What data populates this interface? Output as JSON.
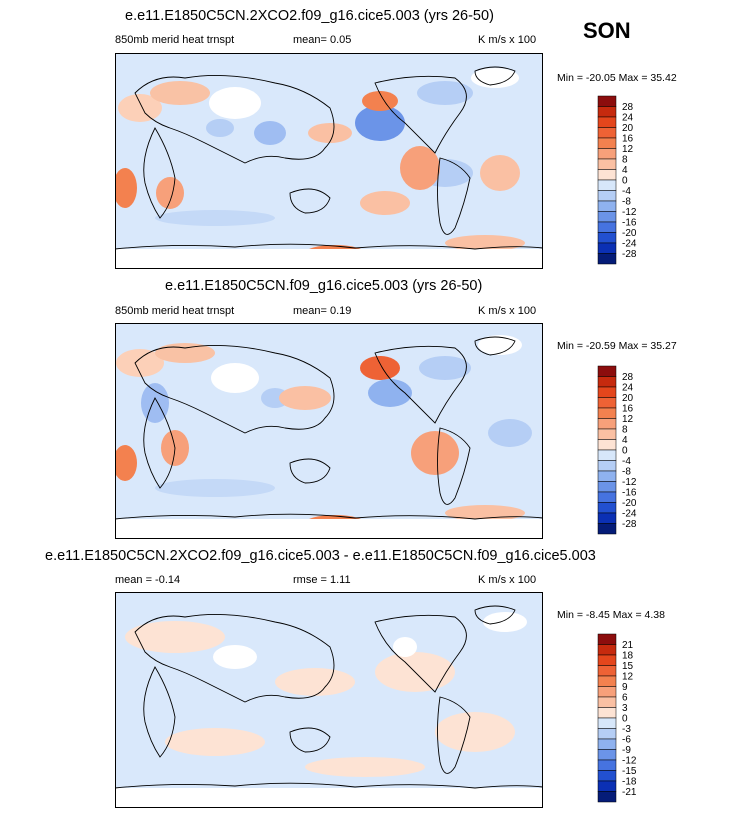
{
  "season": "SON",
  "chart_data": [
    {
      "type": "heatmap",
      "title": "e.e11.E1850C5CN.2XCO2.f09_g16.cice5.003 (yrs 26-50)",
      "left_label": "850mb merid heat trnspt",
      "center_label": "mean=   0.05",
      "units": "K m/s x 100",
      "minmax": "Min = -20.05 Max =  35.42",
      "colorbar_levels": [
        "28",
        "24",
        "20",
        "16",
        "12",
        "8",
        "4",
        "0",
        "-4",
        "-8",
        "-12",
        "-16",
        "-20",
        "-24",
        "-28"
      ],
      "colorbar_colors": [
        "#8c0d0d",
        "#c62a0e",
        "#e4461c",
        "#ee6235",
        "#f3814f",
        "#f7a07a",
        "#fac0a3",
        "#fde3d4",
        "#d7e7fa",
        "#b5cef5",
        "#8fb2ef",
        "#6b94e8",
        "#4673e0",
        "#2250d0",
        "#0b30b4",
        "#051c78"
      ]
    },
    {
      "type": "heatmap",
      "title": "e.e11.E1850C5CN.f09_g16.cice5.003 (yrs 26-50)",
      "left_label": "850mb merid heat trnspt",
      "center_label": "mean=   0.19",
      "units": "K m/s x 100",
      "minmax": "Min = -20.59 Max =  35.27",
      "colorbar_levels": [
        "28",
        "24",
        "20",
        "16",
        "12",
        "8",
        "4",
        "0",
        "-4",
        "-8",
        "-12",
        "-16",
        "-20",
        "-24",
        "-28"
      ],
      "colorbar_colors": [
        "#8c0d0d",
        "#c62a0e",
        "#e4461c",
        "#ee6235",
        "#f3814f",
        "#f7a07a",
        "#fac0a3",
        "#fde3d4",
        "#d7e7fa",
        "#b5cef5",
        "#8fb2ef",
        "#6b94e8",
        "#4673e0",
        "#2250d0",
        "#0b30b4",
        "#051c78"
      ]
    },
    {
      "type": "heatmap",
      "title": "e.e11.E1850C5CN.2XCO2.f09_g16.cice5.003 - e.e11.E1850C5CN.f09_g16.cice5.003",
      "left_label": "mean =  -0.14",
      "center_label": "rmse =   1.11",
      "units": "K m/s x 100",
      "minmax": "Min =  -8.45 Max =   4.38",
      "colorbar_levels": [
        "21",
        "18",
        "15",
        "12",
        "9",
        "6",
        "3",
        "0",
        "-3",
        "-6",
        "-9",
        "-12",
        "-15",
        "-18",
        "-21"
      ],
      "colorbar_colors": [
        "#8c0d0d",
        "#c62a0e",
        "#e4461c",
        "#ee6235",
        "#f3814f",
        "#f7a07a",
        "#fac0a3",
        "#fde3d4",
        "#d7e7fa",
        "#b5cef5",
        "#8fb2ef",
        "#6b94e8",
        "#4673e0",
        "#2250d0",
        "#0b30b4",
        "#051c78"
      ]
    }
  ]
}
